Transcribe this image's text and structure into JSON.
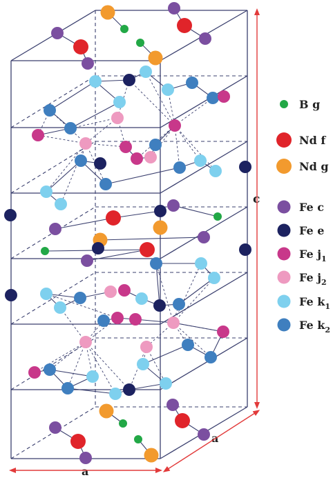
{
  "colors": {
    "frame": "#3a3f6e",
    "bond": "#3a3f6e",
    "dim_arrow": "#e23a3a",
    "B_g": "#22a846",
    "Nd_f": "#e0242a",
    "Nd_g": "#f29a2e",
    "Fe_c": "#7b4fa0",
    "Fe_e": "#1c2260",
    "Fe_j1": "#c8388a",
    "Fe_j2": "#ee9ac0",
    "Fe_k1": "#7ed0ee",
    "Fe_k2": "#3f7fbf"
  },
  "dimension_labels": {
    "a_front": "a",
    "a_side": "a",
    "c": "c"
  },
  "legend": [
    {
      "key": "B_g",
      "el": "B",
      "site": "g",
      "sub": ""
    },
    {
      "key": "Nd_f",
      "el": "Nd",
      "site": "f",
      "sub": ""
    },
    {
      "key": "Nd_g",
      "el": "Nd",
      "site": "g",
      "sub": ""
    },
    {
      "key": "Fe_c",
      "el": "Fe",
      "site": "c",
      "sub": ""
    },
    {
      "key": "Fe_e",
      "el": "Fe",
      "site": "e",
      "sub": ""
    },
    {
      "key": "Fe_j1",
      "el": "Fe",
      "site": "j",
      "sub": "1"
    },
    {
      "key": "Fe_j2",
      "el": "Fe",
      "site": "j",
      "sub": "2"
    },
    {
      "key": "Fe_k1",
      "el": "Fe",
      "site": "k",
      "sub": "1"
    },
    {
      "key": "Fe_k2",
      "el": "Fe",
      "site": "k",
      "sub": "2"
    }
  ]
}
